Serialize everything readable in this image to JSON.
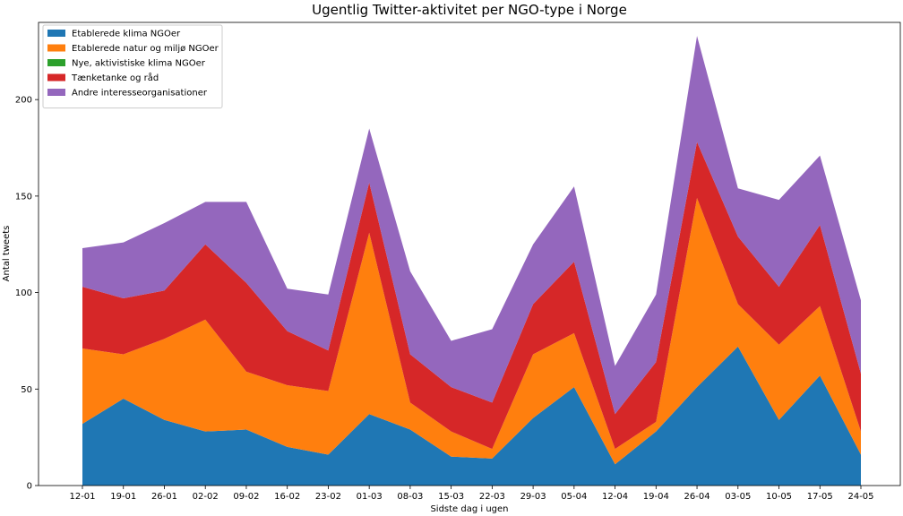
{
  "chart_data": {
    "type": "area",
    "stacked": true,
    "title": "Ugentlig Twitter-aktivitet per NGO-type i Norge",
    "xlabel": "Sidste dag i ugen",
    "ylabel": "Antal tweets",
    "categories": [
      "12-01",
      "19-01",
      "26-01",
      "02-02",
      "09-02",
      "16-02",
      "23-02",
      "01-03",
      "08-03",
      "15-03",
      "22-03",
      "29-03",
      "05-04",
      "12-04",
      "19-04",
      "26-04",
      "03-05",
      "10-05",
      "17-05",
      "24-05"
    ],
    "ylim": [
      0,
      240
    ],
    "yticks": [
      0,
      50,
      100,
      150,
      200
    ],
    "grid": false,
    "legend_position": "top-left",
    "series": [
      {
        "name": "Etablerede klima NGOer",
        "color": "#1f77b4",
        "values": [
          32,
          45,
          34,
          28,
          29,
          20,
          16,
          37,
          29,
          15,
          14,
          35,
          51,
          11,
          28,
          51,
          72,
          34,
          57,
          16
        ]
      },
      {
        "name": "Etablerede natur og miljø NGOer",
        "color": "#ff7f0e",
        "values": [
          39,
          23,
          42,
          58,
          30,
          32,
          33,
          94,
          14,
          13,
          5,
          33,
          28,
          8,
          5,
          98,
          22,
          39,
          36,
          12
        ]
      },
      {
        "name": "Nye, aktivistiske klima NGOer",
        "color": "#2ca02c",
        "values": [
          0,
          0,
          0,
          0,
          0,
          0,
          0,
          0,
          0,
          0,
          0,
          0,
          0,
          0,
          0,
          0,
          0,
          0,
          0,
          0
        ]
      },
      {
        "name": "Tænketanke og råd",
        "color": "#d62728",
        "values": [
          32,
          29,
          25,
          39,
          46,
          28,
          21,
          26,
          25,
          23,
          24,
          26,
          37,
          18,
          31,
          29,
          35,
          30,
          42,
          30
        ]
      },
      {
        "name": "Andre interesseorganisationer",
        "color": "#9467bd",
        "values": [
          20,
          29,
          35,
          22,
          42,
          22,
          29,
          28,
          43,
          24,
          38,
          31,
          39,
          25,
          35,
          55,
          25,
          45,
          36,
          38
        ]
      }
    ]
  }
}
